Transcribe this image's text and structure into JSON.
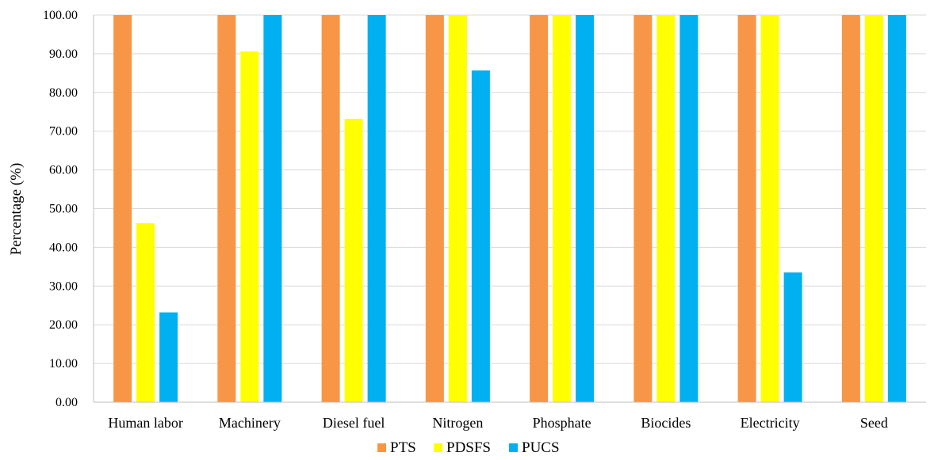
{
  "chart_data": {
    "type": "bar",
    "title": "",
    "xlabel": "",
    "ylabel": "Percentage (%)",
    "ylim": [
      0,
      100
    ],
    "yticks": [
      "0.00",
      "10.00",
      "20.00",
      "30.00",
      "40.00",
      "50.00",
      "60.00",
      "70.00",
      "80.00",
      "90.00",
      "100.00"
    ],
    "categories": [
      "Human labor",
      "Machinery",
      "Diesel fuel",
      "Nitrogen",
      "Phosphate",
      "Biocides",
      "Electricity",
      "Seed"
    ],
    "series": [
      {
        "name": "PTS",
        "color": "#F79646",
        "values": [
          100,
          100,
          100,
          100,
          100,
          100,
          100,
          100
        ]
      },
      {
        "name": "PDSFS",
        "color": "#FFFF00",
        "values": [
          46.2,
          90.6,
          73.2,
          100,
          100,
          100,
          100,
          100
        ]
      },
      {
        "name": "PUCS",
        "color": "#00B0F0",
        "values": [
          23.2,
          100,
          100,
          85.7,
          100,
          100,
          33.5,
          100
        ]
      }
    ],
    "grid": true,
    "legend_position": "bottom"
  }
}
